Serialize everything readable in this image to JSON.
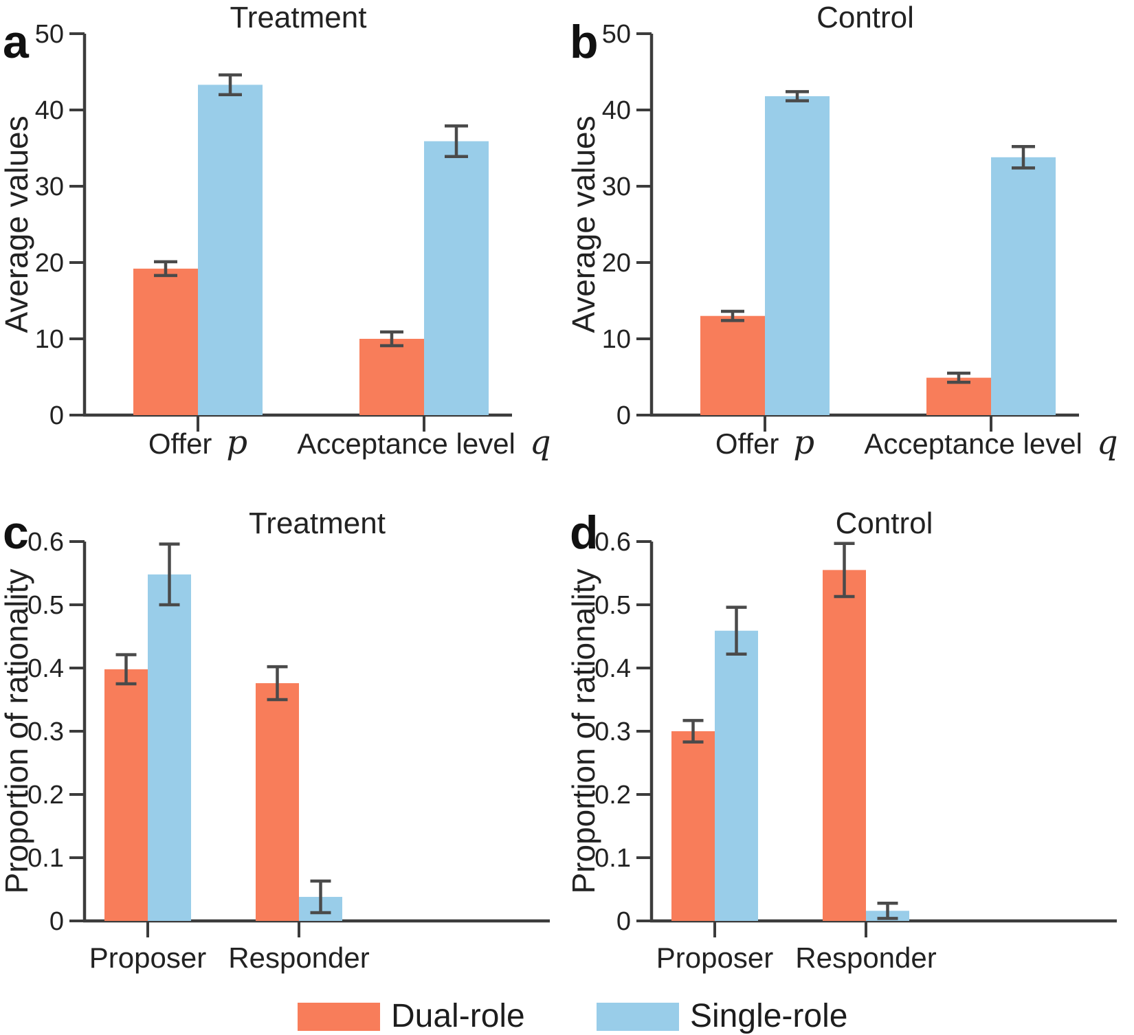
{
  "colors": {
    "dual_role": "#F87D5A",
    "single_role": "#99CDE9",
    "axis": "#3C3C3C",
    "error_bar": "#4A4A4A",
    "text": "#222222"
  },
  "legend": {
    "items": [
      {
        "label": "Dual-role",
        "color": "#F87D5A"
      },
      {
        "label": "Single-role",
        "color": "#99CDE9"
      }
    ]
  },
  "chart_data": [
    {
      "id": "a",
      "type": "bar",
      "panel_label": "a",
      "title": "Treatment",
      "ylabel": "Average values",
      "ylim": [
        0,
        50
      ],
      "yticks": [
        0,
        10,
        20,
        30,
        40,
        50
      ],
      "ytick_labels": [
        "0",
        "10",
        "20",
        "30",
        "40",
        "50"
      ],
      "grid": false,
      "legend_position": "bottom-figure",
      "categories": [
        {
          "label": "Offer",
          "math_symbol": "p"
        },
        {
          "label": "Acceptance level",
          "math_symbol": "q"
        }
      ],
      "series": [
        {
          "name": "Dual-role",
          "color": "#F87D5A",
          "values": [
            19.2,
            10.0
          ],
          "errors": [
            0.9,
            0.9
          ]
        },
        {
          "name": "Single-role",
          "color": "#99CDE9",
          "values": [
            43.3,
            35.9
          ],
          "errors": [
            1.3,
            2.0
          ]
        }
      ]
    },
    {
      "id": "b",
      "type": "bar",
      "panel_label": "b",
      "title": "Control",
      "ylabel": "Average values",
      "ylim": [
        0,
        50
      ],
      "yticks": [
        0,
        10,
        20,
        30,
        40,
        50
      ],
      "ytick_labels": [
        "0",
        "10",
        "20",
        "30",
        "40",
        "50"
      ],
      "grid": false,
      "legend_position": "bottom-figure",
      "categories": [
        {
          "label": "Offer",
          "math_symbol": "p"
        },
        {
          "label": "Acceptance level",
          "math_symbol": "q"
        }
      ],
      "series": [
        {
          "name": "Dual-role",
          "color": "#F87D5A",
          "values": [
            13.0,
            4.9
          ],
          "errors": [
            0.6,
            0.6
          ]
        },
        {
          "name": "Single-role",
          "color": "#99CDE9",
          "values": [
            41.8,
            33.8
          ],
          "errors": [
            0.6,
            1.4
          ]
        }
      ]
    },
    {
      "id": "c",
      "type": "bar",
      "panel_label": "c",
      "title": "Treatment",
      "ylabel": "Proportion of rationality",
      "ylim": [
        0,
        0.6
      ],
      "yticks": [
        0,
        0.1,
        0.2,
        0.3,
        0.4,
        0.5,
        0.6
      ],
      "ytick_labels": [
        "0",
        "0.1",
        "0.2",
        "0.3",
        "0.4",
        "0.5",
        "0.6"
      ],
      "grid": false,
      "legend_position": "bottom-figure",
      "categories": [
        {
          "label": "Proposer",
          "math_symbol": ""
        },
        {
          "label": "Responder",
          "math_symbol": ""
        }
      ],
      "series": [
        {
          "name": "Dual-role",
          "color": "#F87D5A",
          "values": [
            0.398,
            0.376
          ],
          "errors": [
            0.023,
            0.026
          ]
        },
        {
          "name": "Single-role",
          "color": "#99CDE9",
          "values": [
            0.548,
            0.038
          ],
          "errors": [
            0.048,
            0.025
          ]
        }
      ]
    },
    {
      "id": "d",
      "type": "bar",
      "panel_label": "d",
      "title": "Control",
      "ylabel": "Proportion of rationality",
      "ylim": [
        0,
        0.6
      ],
      "yticks": [
        0,
        0.1,
        0.2,
        0.3,
        0.4,
        0.5,
        0.6
      ],
      "ytick_labels": [
        "0",
        "0.1",
        "0.2",
        "0.3",
        "0.4",
        "0.5",
        "0.6"
      ],
      "grid": false,
      "legend_position": "bottom-figure",
      "categories": [
        {
          "label": "Proposer",
          "math_symbol": ""
        },
        {
          "label": "Responder",
          "math_symbol": ""
        }
      ],
      "series": [
        {
          "name": "Dual-role",
          "color": "#F87D5A",
          "values": [
            0.3,
            0.555
          ],
          "errors": [
            0.017,
            0.042
          ]
        },
        {
          "name": "Single-role",
          "color": "#99CDE9",
          "values": [
            0.459,
            0.016
          ],
          "errors": [
            0.037,
            0.012
          ]
        }
      ]
    }
  ]
}
